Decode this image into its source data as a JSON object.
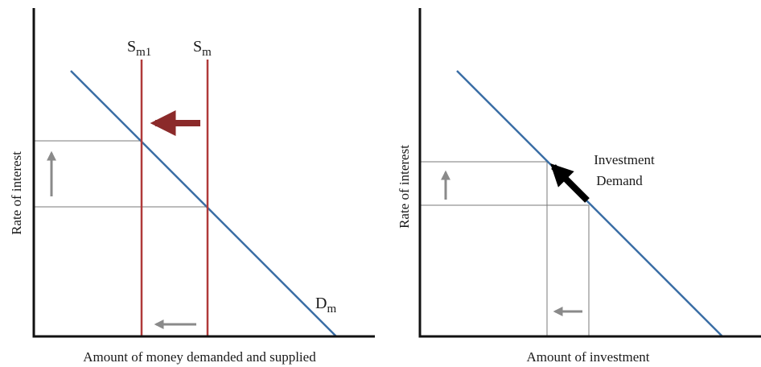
{
  "chart_data": [
    {
      "type": "line",
      "title": "",
      "xlabel": "Amount of money demanded and supplied",
      "ylabel": "Rate of interest",
      "series": [
        {
          "name": "D",
          "name_sub": "m",
          "kind": "demand",
          "color": "#3a6ea5"
        },
        {
          "name": "S",
          "name_sub": "m1",
          "kind": "supply",
          "color": "#b03a3a"
        },
        {
          "name": "S",
          "name_sub": "m",
          "kind": "supply",
          "color": "#b03a3a"
        }
      ],
      "annotations": [
        {
          "kind": "arrow",
          "meaning": "money supply shifts left",
          "color": "#8b2a2a"
        },
        {
          "kind": "arrow",
          "meaning": "interest rate rises",
          "color": "#8a8a8a"
        },
        {
          "kind": "arrow",
          "meaning": "quantity of money falls",
          "color": "#8a8a8a"
        }
      ],
      "ticks": "none",
      "grid": false
    },
    {
      "type": "line",
      "title": "",
      "xlabel": "Amount of investment",
      "ylabel": "Rate of interest",
      "series": [
        {
          "name": "Investment Demand",
          "kind": "demand",
          "color": "#3a6ea5"
        }
      ],
      "annotations": [
        {
          "kind": "arrow",
          "meaning": "movement up along investment demand",
          "color": "#000000"
        },
        {
          "kind": "arrow",
          "meaning": "interest rate rises",
          "color": "#8a8a8a"
        },
        {
          "kind": "arrow",
          "meaning": "investment falls",
          "color": "#8a8a8a"
        }
      ],
      "ticks": "none",
      "grid": false
    }
  ]
}
